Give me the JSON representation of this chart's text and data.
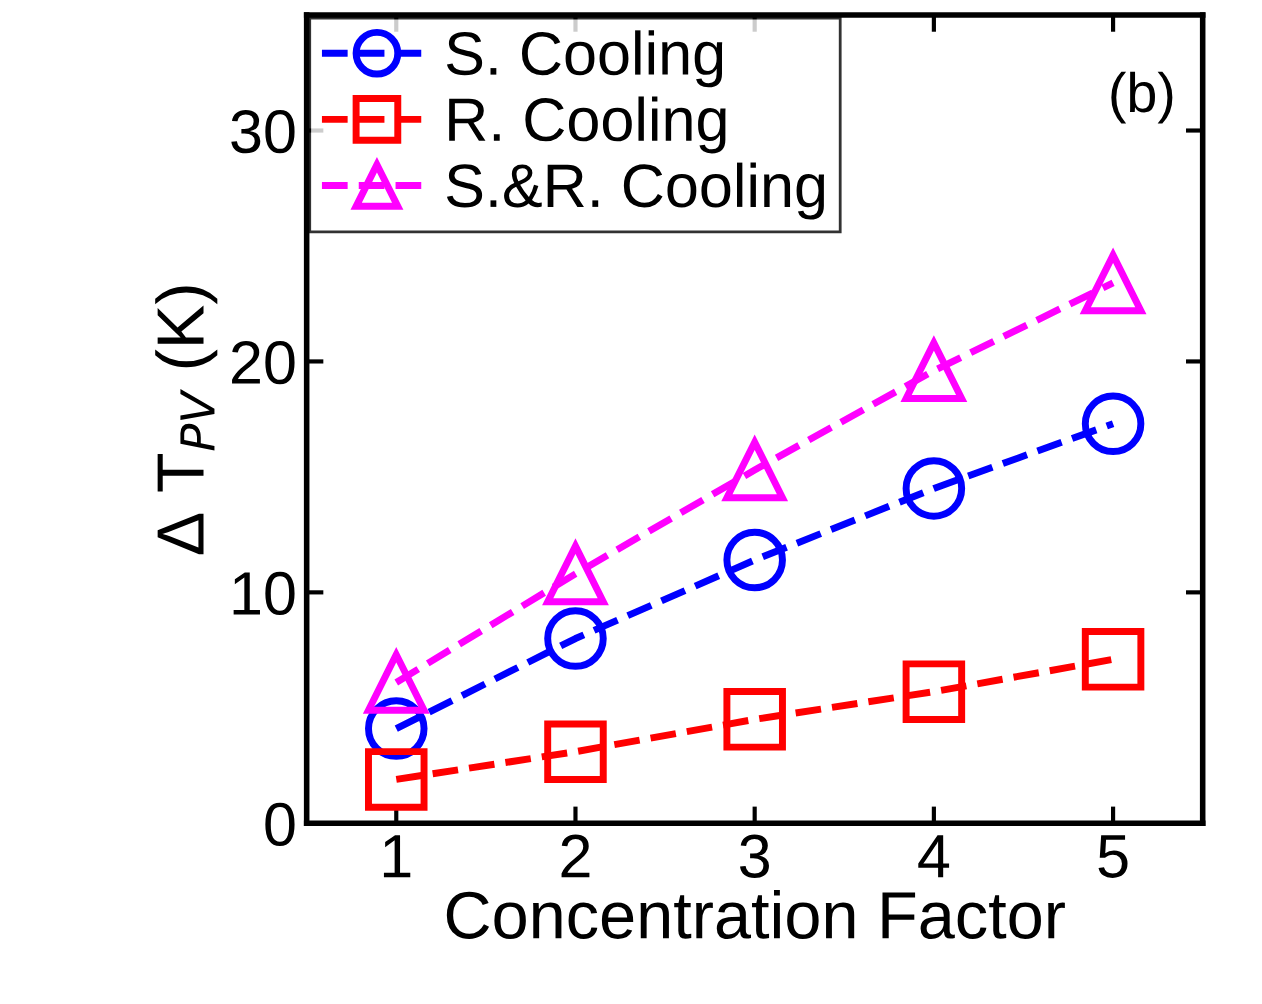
{
  "chart_data": {
    "type": "line",
    "xlabel": "Concentration Factor",
    "ylabel": "Δ T$_{PV}$ (K)",
    "x": [
      1,
      2,
      3,
      4,
      5
    ],
    "series": [
      {
        "name": "S. Cooling",
        "color": "#0000ff",
        "marker": "circle",
        "values": [
          4.1,
          8.0,
          11.4,
          14.5,
          17.3
        ]
      },
      {
        "name": "R. Cooling",
        "color": "#ff0000",
        "marker": "square",
        "values": [
          1.9,
          3.1,
          4.5,
          5.7,
          7.1
        ]
      },
      {
        "name": "S.&R. Cooling",
        "color": "#ff00ff",
        "marker": "triangle",
        "values": [
          6.1,
          10.8,
          15.3,
          19.6,
          23.4
        ]
      }
    ],
    "xlim": [
      0.5,
      5.5
    ],
    "xticks": [
      1,
      2,
      3,
      4,
      5
    ],
    "ylim": [
      0,
      35
    ],
    "yticks": [
      0,
      10,
      20,
      30
    ],
    "line_style": "dashed",
    "grid": false,
    "legend": "top left",
    "annotations": [
      "(b)"
    ]
  }
}
